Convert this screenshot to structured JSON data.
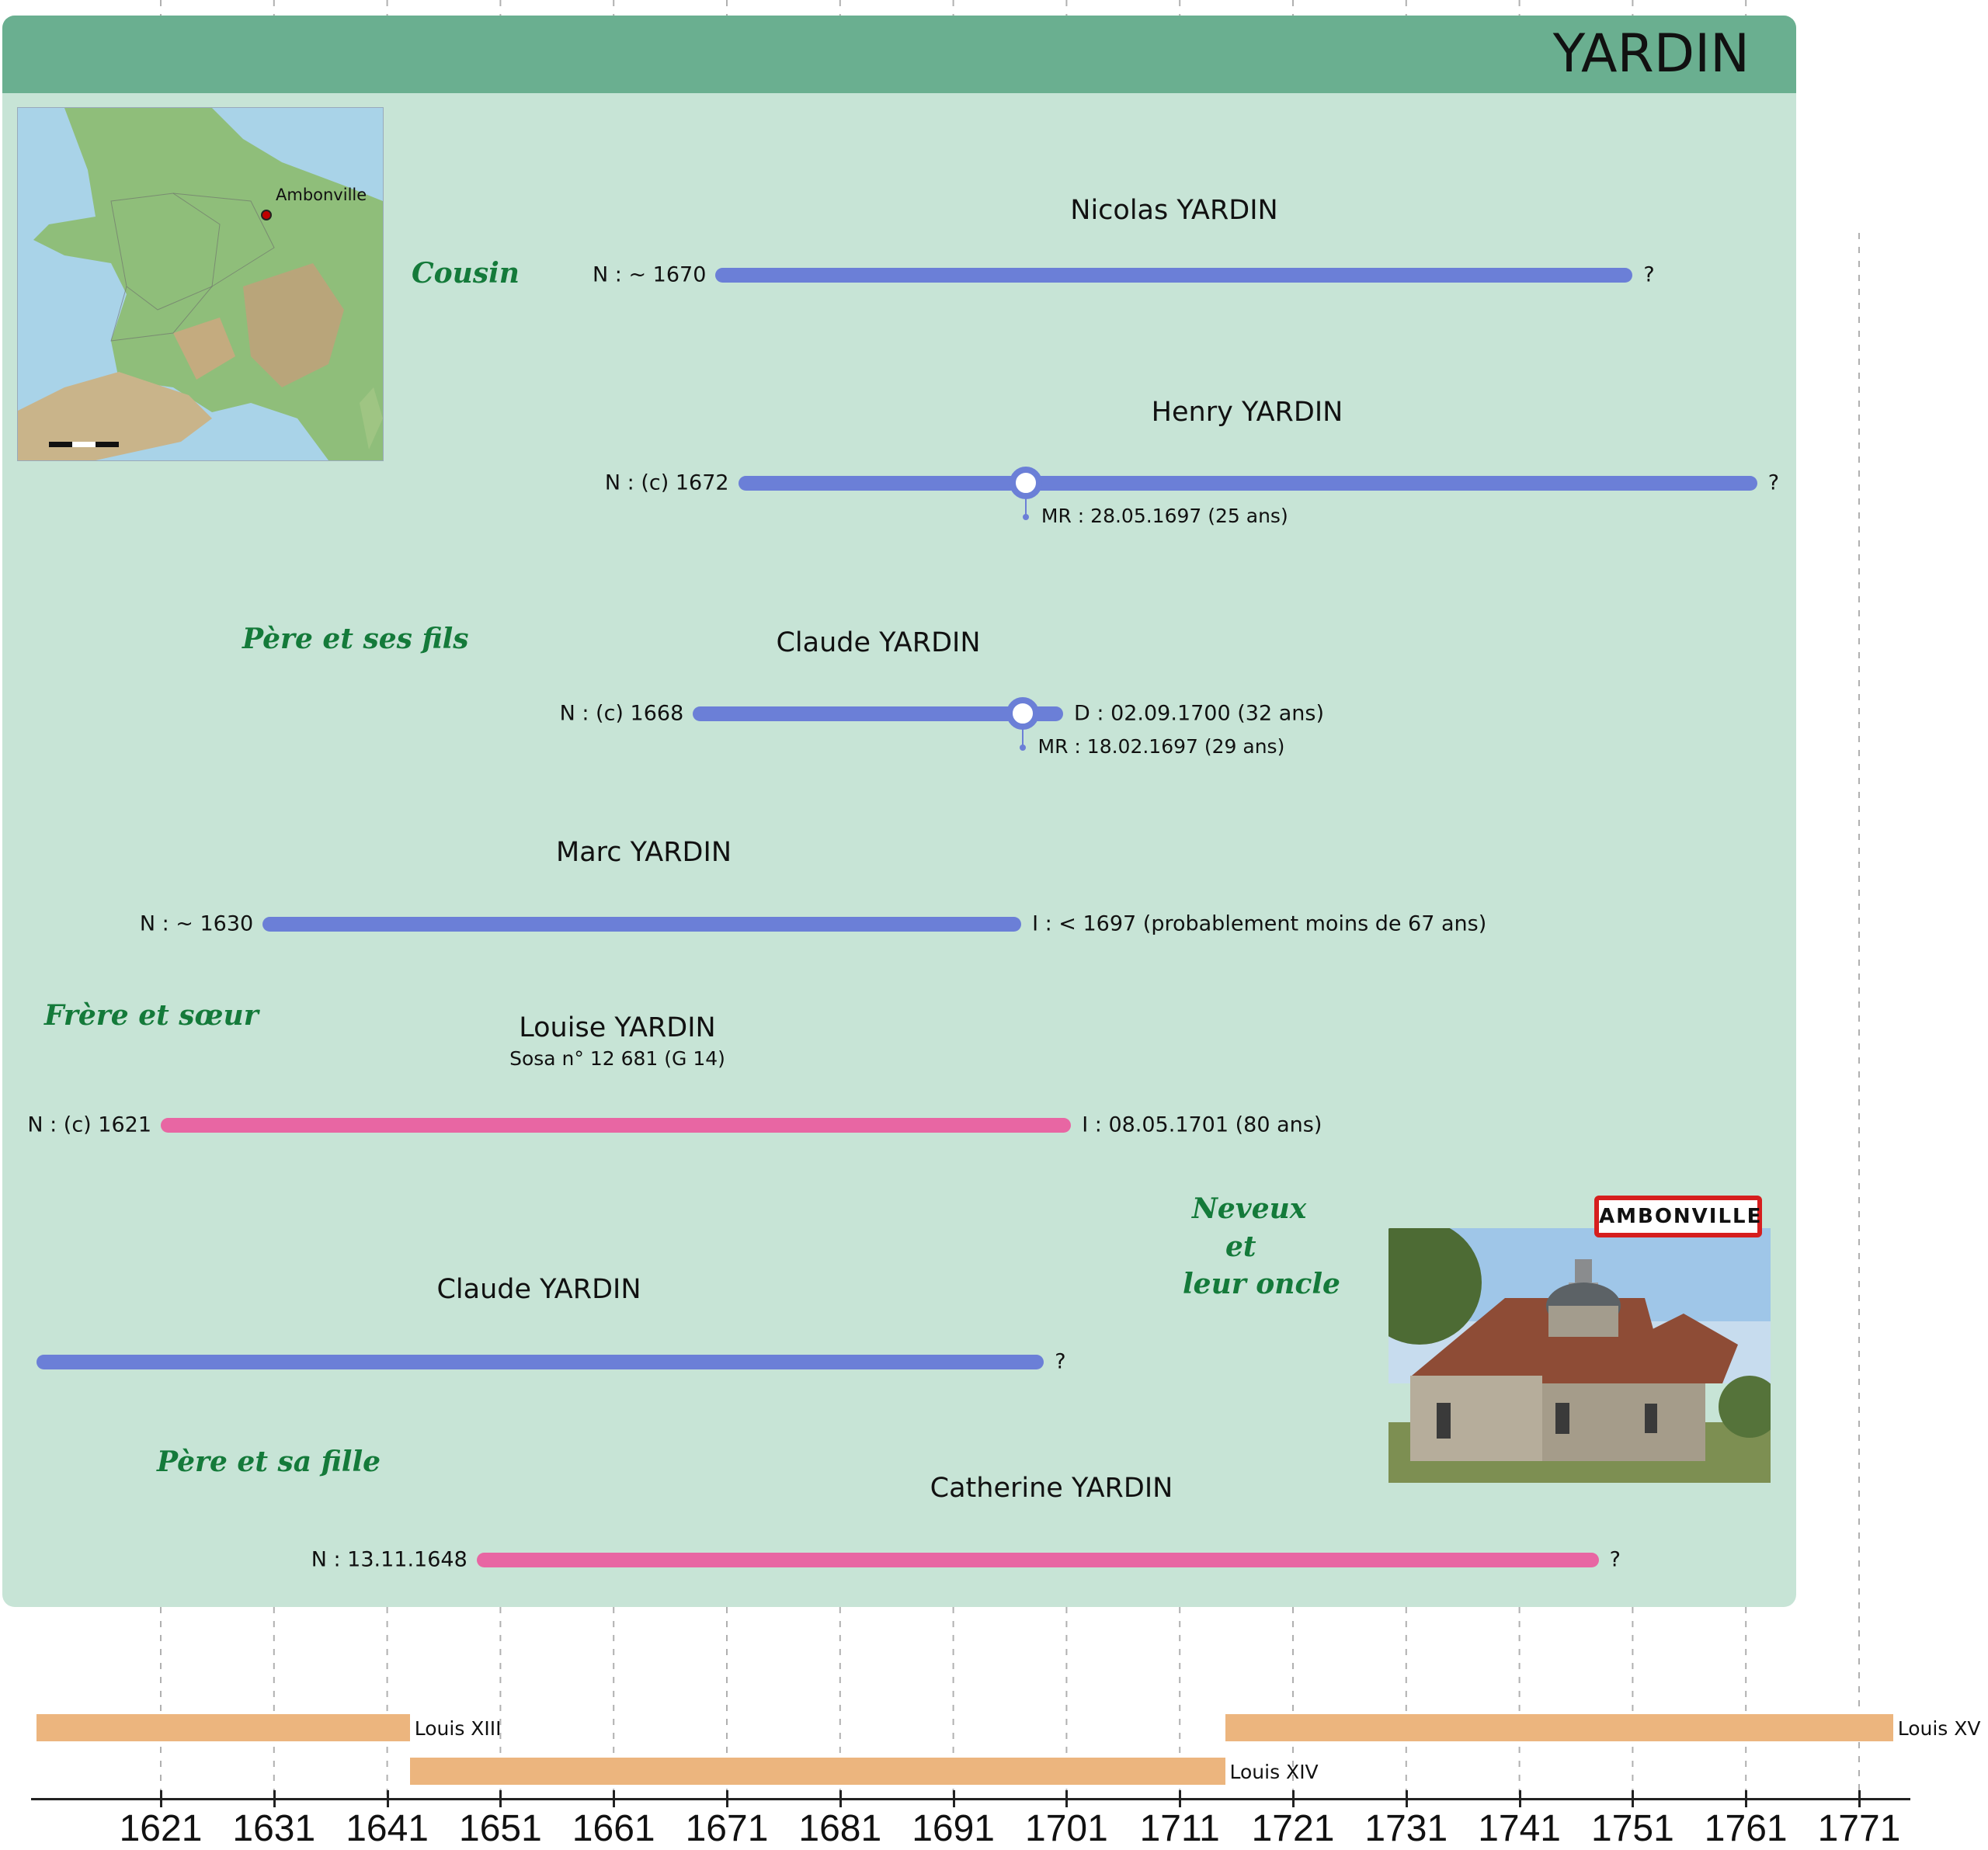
{
  "header": {
    "title": "YARDIN"
  },
  "map": {
    "town_label": "Ambonville"
  },
  "church_photo": {
    "sign_text": "AMBONVILLE"
  },
  "group_labels": {
    "cousin": "Cousin",
    "pere_et_ses_fils": "Père et ses fils",
    "frere_et_soeur": "Frère et sœur",
    "neveux_line1": "Neveux",
    "neveux_line2": "et",
    "neveux_line3": "leur oncle",
    "pere_et_sa_fille": "Père et sa fille"
  },
  "people": {
    "nicolas": {
      "name": "Nicolas YARDIN",
      "start": "N : ~ 1670",
      "end": "?"
    },
    "henry": {
      "name": "Henry YARDIN",
      "start": "N : (c) 1672",
      "end": "?",
      "marriage": "MR : 28.05.1697 (25 ans)"
    },
    "claude_fils": {
      "name": "Claude YARDIN",
      "start": "N : (c) 1668",
      "end": "D : 02.09.1700 (32 ans)",
      "marriage": "MR : 18.02.1697 (29 ans)"
    },
    "marc": {
      "name": "Marc YARDIN",
      "start": "N : ~ 1630",
      "end": "I : < 1697 (probablement moins de 67 ans)"
    },
    "louise": {
      "name": "Louise YARDIN",
      "sosa": "Sosa n° 12 681 (G 14)",
      "start": "N : (c) 1621",
      "end": "I : 08.05.1701 (80 ans)"
    },
    "claude_pere": {
      "name": "Claude YARDIN",
      "end": "?"
    },
    "catherine": {
      "name": "Catherine YARDIN",
      "start": "N : 13.11.1648",
      "end": "?"
    }
  },
  "lifespans": [
    {
      "id": "nicolas",
      "sex": "M",
      "from": 1670,
      "to": 1751
    },
    {
      "id": "henry",
      "sex": "M",
      "from": 1672,
      "to": 1762,
      "marriage_year": 1697.4
    },
    {
      "id": "claude_fils",
      "sex": "M",
      "from": 1668,
      "to": 1700.7,
      "marriage_year": 1697.1
    },
    {
      "id": "marc",
      "sex": "M",
      "from": 1630,
      "to": 1697
    },
    {
      "id": "louise",
      "sex": "F",
      "from": 1621,
      "to": 1701.4
    },
    {
      "id": "claude_pere",
      "sex": "M",
      "from": 1610,
      "to": 1699
    },
    {
      "id": "catherine",
      "sex": "F",
      "from": 1648.9,
      "to": 1748
    }
  ],
  "reigns": [
    {
      "name": "Louis XIII",
      "from": 1610,
      "to": 1643
    },
    {
      "name": "Louis XIV",
      "from": 1643,
      "to": 1715
    },
    {
      "name": "Louis XV",
      "from": 1715,
      "to": 1774
    }
  ],
  "axis": {
    "ticks": [
      1621,
      1631,
      1641,
      1651,
      1661,
      1671,
      1681,
      1691,
      1701,
      1711,
      1721,
      1731,
      1741,
      1751,
      1761,
      1771
    ]
  },
  "colors": {
    "panel": "#c7e4d6",
    "header": "#6aaf90",
    "male": "#6b7fd7",
    "female": "#e866a3",
    "reign": "#ecb57e",
    "label_green": "#147a3a"
  }
}
